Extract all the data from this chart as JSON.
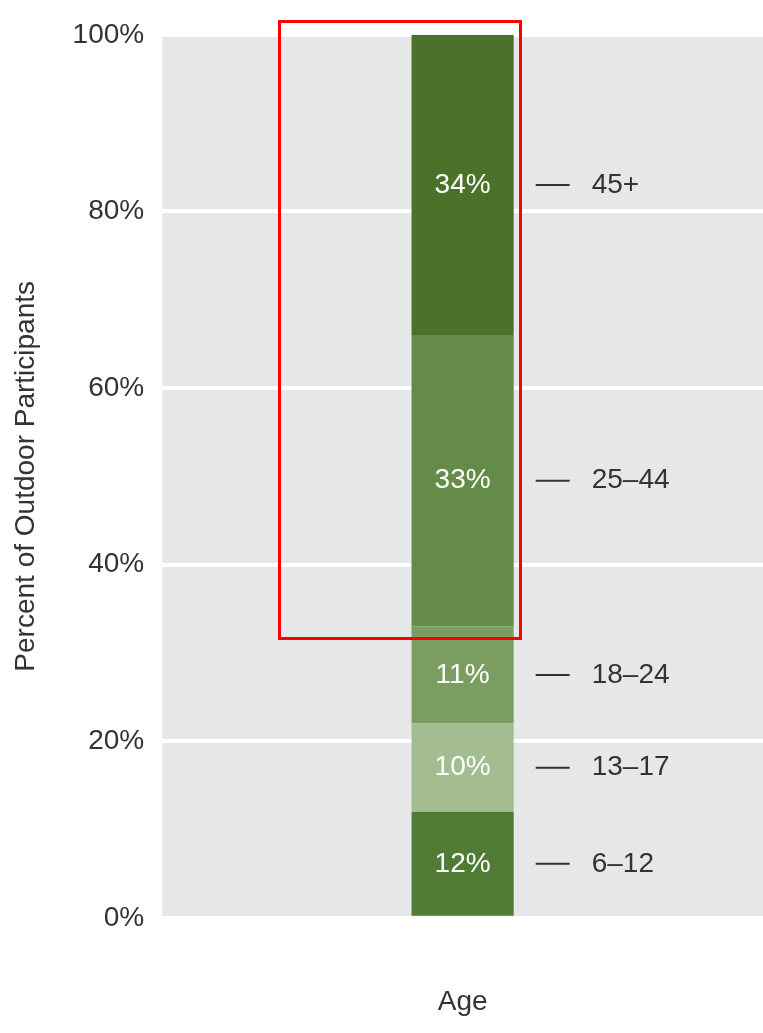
{
  "chart_data": {
    "type": "bar",
    "stacked": true,
    "xlabel": "Age",
    "ylabel": "Percent of Outdoor Participants",
    "categories": [
      null
    ],
    "series": [
      {
        "name": "6–12",
        "color": "#4f7b35",
        "values": [
          12
        ],
        "value_labels": [
          "12%"
        ]
      },
      {
        "name": "13–17",
        "color": "#a4bd90",
        "values": [
          10
        ],
        "value_labels": [
          "10%"
        ]
      },
      {
        "name": "18–24",
        "color": "#7c9d62",
        "values": [
          11
        ],
        "value_labels": [
          "11%"
        ]
      },
      {
        "name": "25–44",
        "color": "#648b47",
        "values": [
          33
        ],
        "value_labels": [
          "33%"
        ]
      },
      {
        "name": "45+",
        "color": "#4a7229",
        "values": [
          34
        ],
        "value_labels": [
          "34%"
        ]
      }
    ],
    "ylim": [
      0,
      100
    ],
    "yticks": [
      {
        "value": 0,
        "label": "0%"
      },
      {
        "value": 20,
        "label": "20%"
      },
      {
        "value": 40,
        "label": "40%"
      },
      {
        "value": 60,
        "label": "60%"
      },
      {
        "value": 80,
        "label": "80%"
      },
      {
        "value": 100,
        "label": "100%"
      }
    ],
    "grid": "y",
    "legend": false
  }
}
